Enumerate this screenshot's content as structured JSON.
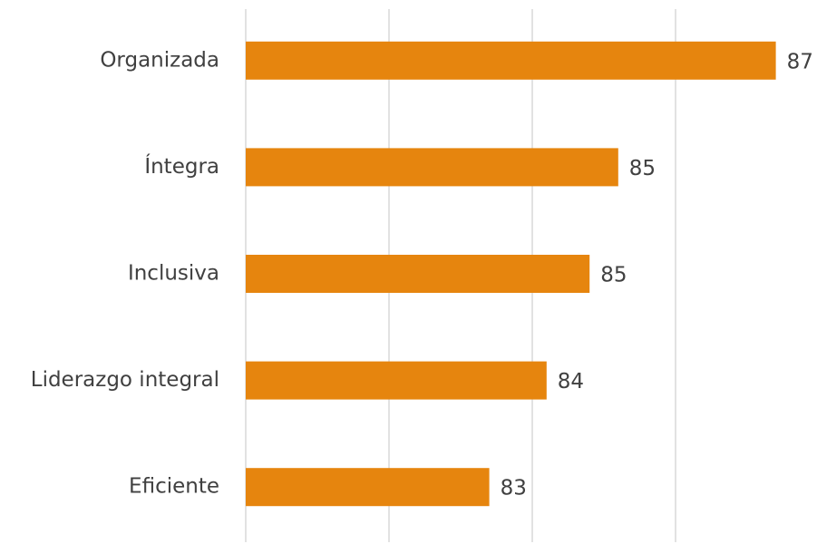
{
  "chart_data": {
    "type": "bar",
    "orientation": "horizontal",
    "categories": [
      "Organizada",
      "Íntegra",
      "Inclusiva",
      "Liderazgo integral",
      "Eficiente"
    ],
    "values": [
      87.4,
      85.2,
      84.8,
      84.2,
      83.4
    ],
    "value_labels": [
      "87",
      "85",
      "85",
      "84",
      "83"
    ],
    "color": "#e6850e",
    "xlim": [
      80,
      88
    ],
    "xticks": [
      80,
      82,
      84,
      86
    ],
    "grid": true
  }
}
